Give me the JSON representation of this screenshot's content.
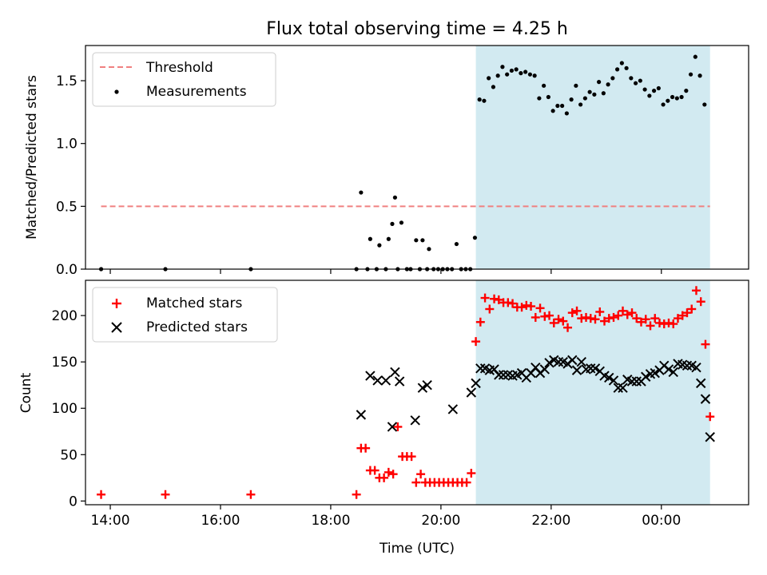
{
  "figure_title": "Flux total observing time = 4.25 h",
  "shaded_interval": {
    "start": "20:38",
    "end": "00:53",
    "color": "#add8e6"
  },
  "chart_data": [
    {
      "type": "scatter",
      "ylabel": "Matched/Predicted stars",
      "xlim": [
        "13:33",
        "01:35"
      ],
      "ylim": [
        0,
        1.78
      ],
      "yticks": [
        0.0,
        0.5,
        1.0,
        1.5
      ],
      "yticklabels": [
        "0.0",
        "0.5",
        "1.0",
        "1.5"
      ],
      "legend_position": "upper left",
      "threshold": {
        "name": "Threshold",
        "value": 0.5,
        "x_start": "13:50",
        "x_end": "00:53",
        "color": "#f08080",
        "style": "dashed"
      },
      "series": [
        {
          "name": "Measurements",
          "color": "#000000",
          "marker": "dot",
          "points": [
            [
              "13:50",
              0
            ],
            [
              "15:00",
              0
            ],
            [
              "16:33",
              0
            ],
            [
              "18:28",
              0
            ],
            [
              "18:33",
              0.61
            ],
            [
              "18:40",
              0
            ],
            [
              "18:43",
              0.24
            ],
            [
              "18:50",
              0
            ],
            [
              "18:53",
              0.19
            ],
            [
              "19:00",
              0
            ],
            [
              "19:03",
              0.24
            ],
            [
              "19:07",
              0.36
            ],
            [
              "19:10",
              0.57
            ],
            [
              "19:13",
              0
            ],
            [
              "19:17",
              0.37
            ],
            [
              "19:23",
              0
            ],
            [
              "19:27",
              0
            ],
            [
              "19:33",
              0.23
            ],
            [
              "19:37",
              0
            ],
            [
              "19:40",
              0.23
            ],
            [
              "19:45",
              0
            ],
            [
              "19:47",
              0.16
            ],
            [
              "19:52",
              0
            ],
            [
              "19:57",
              0
            ],
            [
              "20:02",
              0
            ],
            [
              "20:07",
              0
            ],
            [
              "20:12",
              0
            ],
            [
              "20:17",
              0.2
            ],
            [
              "20:22",
              0
            ],
            [
              "20:27",
              0
            ],
            [
              "20:32",
              0
            ],
            [
              "20:37",
              0.25
            ],
            [
              "20:42",
              1.35
            ],
            [
              "20:47",
              1.34
            ],
            [
              "20:52",
              1.52
            ],
            [
              "20:57",
              1.45
            ],
            [
              "21:02",
              1.54
            ],
            [
              "21:07",
              1.61
            ],
            [
              "21:12",
              1.55
            ],
            [
              "21:17",
              1.58
            ],
            [
              "21:22",
              1.59
            ],
            [
              "21:27",
              1.56
            ],
            [
              "21:32",
              1.57
            ],
            [
              "21:37",
              1.55
            ],
            [
              "21:42",
              1.54
            ],
            [
              "21:47",
              1.36
            ],
            [
              "21:52",
              1.46
            ],
            [
              "21:57",
              1.37
            ],
            [
              "22:02",
              1.26
            ],
            [
              "22:07",
              1.3
            ],
            [
              "22:12",
              1.3
            ],
            [
              "22:17",
              1.24
            ],
            [
              "22:22",
              1.35
            ],
            [
              "22:27",
              1.46
            ],
            [
              "22:32",
              1.31
            ],
            [
              "22:37",
              1.36
            ],
            [
              "22:42",
              1.41
            ],
            [
              "22:47",
              1.39
            ],
            [
              "22:52",
              1.49
            ],
            [
              "22:57",
              1.4
            ],
            [
              "23:02",
              1.47
            ],
            [
              "23:07",
              1.52
            ],
            [
              "23:12",
              1.59
            ],
            [
              "23:17",
              1.64
            ],
            [
              "23:22",
              1.6
            ],
            [
              "23:27",
              1.52
            ],
            [
              "23:32",
              1.48
            ],
            [
              "23:37",
              1.5
            ],
            [
              "23:42",
              1.43
            ],
            [
              "23:47",
              1.38
            ],
            [
              "23:52",
              1.42
            ],
            [
              "23:57",
              1.44
            ],
            [
              "00:02",
              1.31
            ],
            [
              "00:07",
              1.34
            ],
            [
              "00:12",
              1.37
            ],
            [
              "00:17",
              1.36
            ],
            [
              "00:22",
              1.37
            ],
            [
              "00:27",
              1.42
            ],
            [
              "00:32",
              1.55
            ],
            [
              "00:37",
              1.69
            ],
            [
              "00:42",
              1.54
            ],
            [
              "00:47",
              1.31
            ]
          ]
        }
      ]
    },
    {
      "type": "scatter",
      "xlabel": "Time (UTC)",
      "ylabel": "Count",
      "xlim": [
        "13:33",
        "01:35"
      ],
      "ylim": [
        -4,
        238
      ],
      "yticks": [
        0,
        50,
        100,
        150,
        200
      ],
      "yticklabels": [
        "0",
        "50",
        "100",
        "150",
        "200"
      ],
      "xticks": [
        "14:00",
        "16:00",
        "18:00",
        "20:00",
        "22:00",
        "00:00"
      ],
      "xticklabels": [
        "14:00",
        "16:00",
        "18:00",
        "20:00",
        "22:00",
        "00:00"
      ],
      "legend_position": "upper left",
      "series": [
        {
          "name": "Matched stars",
          "color": "#ff0000",
          "marker": "plus",
          "points": [
            [
              "13:50",
              7
            ],
            [
              "15:00",
              7
            ],
            [
              "16:33",
              7
            ],
            [
              "18:28",
              7
            ],
            [
              "18:33",
              57
            ],
            [
              "18:38",
              57
            ],
            [
              "18:43",
              33
            ],
            [
              "18:48",
              33
            ],
            [
              "18:53",
              25
            ],
            [
              "18:58",
              25
            ],
            [
              "19:03",
              31
            ],
            [
              "19:08",
              29
            ],
            [
              "19:13",
              80
            ],
            [
              "19:18",
              48
            ],
            [
              "19:23",
              48
            ],
            [
              "19:28",
              48
            ],
            [
              "19:33",
              20
            ],
            [
              "19:38",
              29
            ],
            [
              "19:43",
              20
            ],
            [
              "19:48",
              20
            ],
            [
              "19:53",
              20
            ],
            [
              "19:58",
              20
            ],
            [
              "20:03",
              20
            ],
            [
              "20:08",
              20
            ],
            [
              "20:13",
              20
            ],
            [
              "20:18",
              20
            ],
            [
              "20:23",
              20
            ],
            [
              "20:28",
              20
            ],
            [
              "20:33",
              30
            ],
            [
              "20:38",
              172
            ],
            [
              "20:43",
              193
            ],
            [
              "20:48",
              219
            ],
            [
              "20:53",
              207
            ],
            [
              "20:58",
              218
            ],
            [
              "21:03",
              217
            ],
            [
              "21:08",
              214
            ],
            [
              "21:13",
              214
            ],
            [
              "21:18",
              213
            ],
            [
              "21:23",
              209
            ],
            [
              "21:28",
              209
            ],
            [
              "21:33",
              211
            ],
            [
              "21:38",
              210
            ],
            [
              "21:43",
              198
            ],
            [
              "21:48",
              208
            ],
            [
              "21:53",
              199
            ],
            [
              "21:58",
              200
            ],
            [
              "22:03",
              192
            ],
            [
              "22:08",
              196
            ],
            [
              "22:13",
              194
            ],
            [
              "22:18",
              187
            ],
            [
              "22:23",
              203
            ],
            [
              "22:28",
              205
            ],
            [
              "22:33",
              197
            ],
            [
              "22:38",
              198
            ],
            [
              "22:43",
              197
            ],
            [
              "22:48",
              196
            ],
            [
              "22:53",
              204
            ],
            [
              "22:58",
              194
            ],
            [
              "23:03",
              197
            ],
            [
              "23:08",
              198
            ],
            [
              "23:13",
              200
            ],
            [
              "23:18",
              205
            ],
            [
              "23:23",
              201
            ],
            [
              "23:28",
              203
            ],
            [
              "23:33",
              197
            ],
            [
              "23:38",
              193
            ],
            [
              "23:43",
              196
            ],
            [
              "23:48",
              189
            ],
            [
              "23:53",
              197
            ],
            [
              "23:58",
              192
            ],
            [
              "00:03",
              191
            ],
            [
              "00:08",
              192
            ],
            [
              "00:13",
              191
            ],
            [
              "00:18",
              197
            ],
            [
              "00:23",
              200
            ],
            [
              "00:28",
              203
            ],
            [
              "00:33",
              207
            ],
            [
              "00:38",
              227
            ],
            [
              "00:43",
              215
            ],
            [
              "00:48",
              169
            ],
            [
              "00:53",
              91
            ]
          ]
        },
        {
          "name": "Predicted stars",
          "color": "#000000",
          "marker": "x",
          "points": [
            [
              "18:33",
              93
            ],
            [
              "18:43",
              135
            ],
            [
              "18:51",
              130
            ],
            [
              "19:00",
              130
            ],
            [
              "19:07",
              80
            ],
            [
              "19:10",
              139
            ],
            [
              "19:15",
              129
            ],
            [
              "19:32",
              87
            ],
            [
              "19:40",
              122
            ],
            [
              "19:45",
              125
            ],
            [
              "20:13",
              99
            ],
            [
              "20:33",
              117
            ],
            [
              "20:38",
              127
            ],
            [
              "20:43",
              143
            ],
            [
              "20:48",
              143
            ],
            [
              "20:53",
              141
            ],
            [
              "20:58",
              142
            ],
            [
              "21:03",
              136
            ],
            [
              "21:08",
              136
            ],
            [
              "21:13",
              136
            ],
            [
              "21:18",
              135
            ],
            [
              "21:23",
              136
            ],
            [
              "21:28",
              138
            ],
            [
              "21:33",
              133
            ],
            [
              "21:38",
              138
            ],
            [
              "21:43",
              144
            ],
            [
              "21:48",
              138
            ],
            [
              "21:53",
              142
            ],
            [
              "21:58",
              149
            ],
            [
              "22:03",
              152
            ],
            [
              "22:08",
              150
            ],
            [
              "22:13",
              150
            ],
            [
              "22:18",
              148
            ],
            [
              "22:23",
              152
            ],
            [
              "22:28",
              141
            ],
            [
              "22:33",
              150
            ],
            [
              "22:38",
              142
            ],
            [
              "22:43",
              143
            ],
            [
              "22:48",
              143
            ],
            [
              "22:53",
              140
            ],
            [
              "22:58",
              135
            ],
            [
              "23:03",
              133
            ],
            [
              "23:08",
              130
            ],
            [
              "23:13",
              122
            ],
            [
              "23:18",
              122
            ],
            [
              "23:23",
              131
            ],
            [
              "23:28",
              129
            ],
            [
              "23:33",
              129
            ],
            [
              "23:38",
              129
            ],
            [
              "23:43",
              134
            ],
            [
              "23:48",
              137
            ],
            [
              "23:53",
              138
            ],
            [
              "23:58",
              141
            ],
            [
              "00:03",
              146
            ],
            [
              "00:08",
              142
            ],
            [
              "00:13",
              139
            ],
            [
              "00:18",
              148
            ],
            [
              "00:23",
              147
            ],
            [
              "00:28",
              146
            ],
            [
              "00:33",
              146
            ],
            [
              "00:38",
              144
            ],
            [
              "00:43",
              127
            ],
            [
              "00:48",
              110
            ],
            [
              "00:53",
              69
            ]
          ]
        }
      ]
    }
  ]
}
